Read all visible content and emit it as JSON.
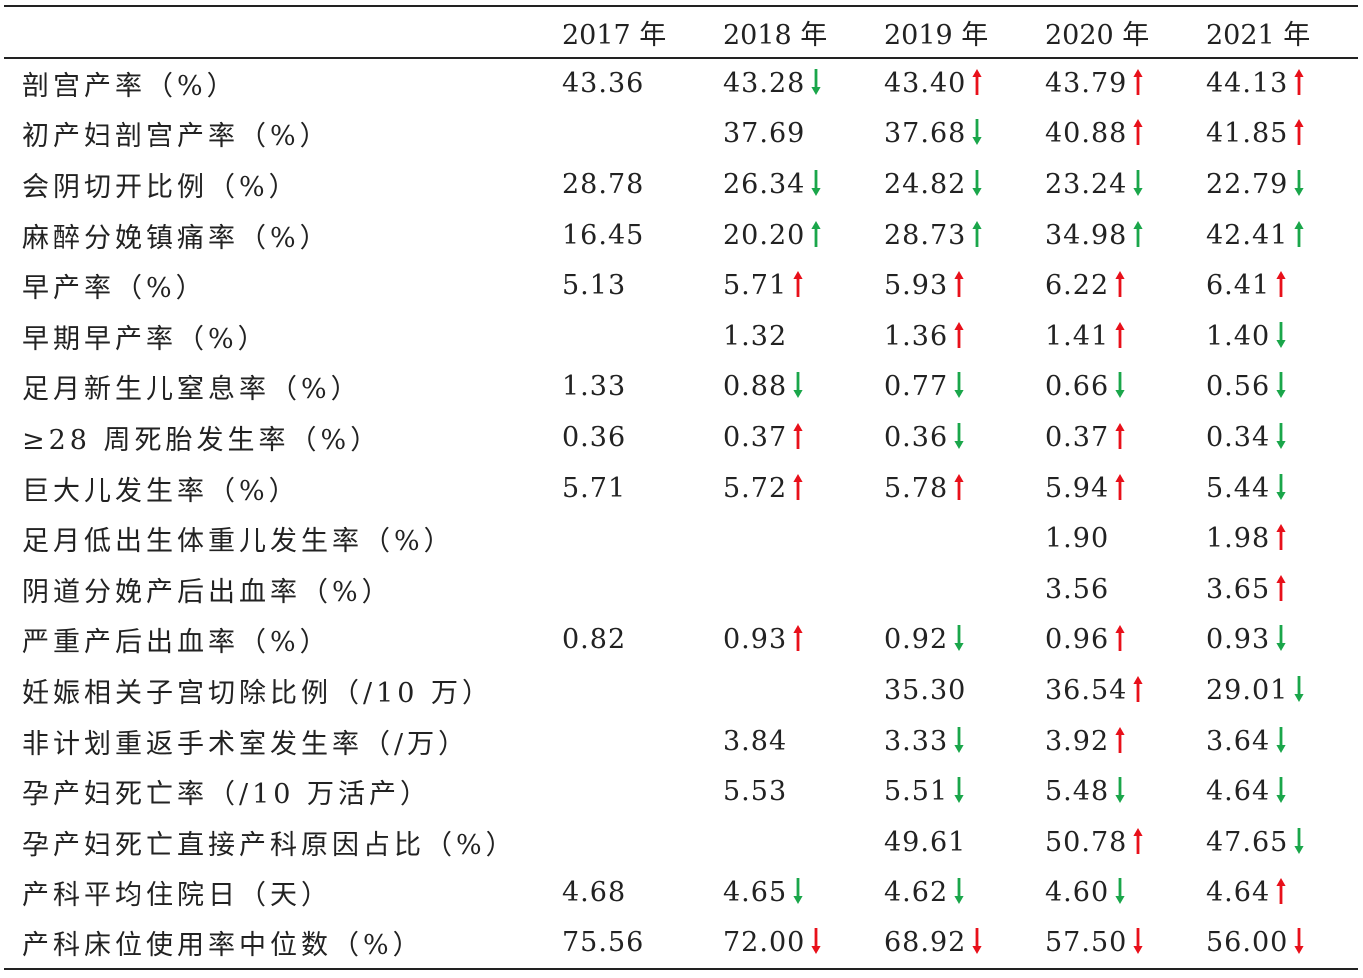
{
  "colors": {
    "up": "#e8101a",
    "down": "#1aa64a",
    "text": "#222222",
    "rule": "#222222"
  },
  "headers": [
    "",
    "2017 年",
    "2018 年",
    "2019 年",
    "2020 年",
    "2021 年"
  ],
  "rows": [
    {
      "label": "剖宫产率（%）",
      "cells": [
        {
          "v": "43.36",
          "t": ""
        },
        {
          "v": "43.28",
          "t": "down"
        },
        {
          "v": "43.40",
          "t": "up"
        },
        {
          "v": "43.79",
          "t": "up"
        },
        {
          "v": "44.13",
          "t": "up"
        }
      ]
    },
    {
      "label": "初产妇剖宫产率（%）",
      "cells": [
        {
          "v": "",
          "t": ""
        },
        {
          "v": "37.69",
          "t": ""
        },
        {
          "v": "37.68",
          "t": "down"
        },
        {
          "v": "40.88",
          "t": "up"
        },
        {
          "v": "41.85",
          "t": "up"
        }
      ]
    },
    {
      "label": "会阴切开比例（%）",
      "cells": [
        {
          "v": "28.78",
          "t": ""
        },
        {
          "v": "26.34",
          "t": "down"
        },
        {
          "v": "24.82",
          "t": "down"
        },
        {
          "v": "23.24",
          "t": "down"
        },
        {
          "v": "22.79",
          "t": "down"
        }
      ]
    },
    {
      "label": "麻醉分娩镇痛率（%）",
      "cells": [
        {
          "v": "16.45",
          "t": ""
        },
        {
          "v": "20.20",
          "t": "up_g"
        },
        {
          "v": "28.73",
          "t": "up_g"
        },
        {
          "v": "34.98",
          "t": "up_g"
        },
        {
          "v": "42.41",
          "t": "up_g"
        }
      ]
    },
    {
      "label": "早产率（%）",
      "cells": [
        {
          "v": "5.13",
          "t": ""
        },
        {
          "v": "5.71",
          "t": "up"
        },
        {
          "v": "5.93",
          "t": "up"
        },
        {
          "v": "6.22",
          "t": "up"
        },
        {
          "v": "6.41",
          "t": "up"
        }
      ]
    },
    {
      "label": "早期早产率（%）",
      "cells": [
        {
          "v": "",
          "t": ""
        },
        {
          "v": "1.32",
          "t": ""
        },
        {
          "v": "1.36",
          "t": "up"
        },
        {
          "v": "1.41",
          "t": "up"
        },
        {
          "v": "1.40",
          "t": "down"
        }
      ]
    },
    {
      "label": "足月新生儿窒息率（%）",
      "cells": [
        {
          "v": "1.33",
          "t": ""
        },
        {
          "v": "0.88",
          "t": "down"
        },
        {
          "v": "0.77",
          "t": "down"
        },
        {
          "v": "0.66",
          "t": "down"
        },
        {
          "v": "0.56",
          "t": "down"
        }
      ]
    },
    {
      "label": "≥28 周死胎发生率（%）",
      "cells": [
        {
          "v": "0.36",
          "t": ""
        },
        {
          "v": "0.37",
          "t": "up"
        },
        {
          "v": "0.36",
          "t": "down"
        },
        {
          "v": "0.37",
          "t": "up"
        },
        {
          "v": "0.34",
          "t": "down"
        }
      ]
    },
    {
      "label": "巨大儿发生率（%）",
      "cells": [
        {
          "v": "5.71",
          "t": ""
        },
        {
          "v": "5.72",
          "t": "up"
        },
        {
          "v": "5.78",
          "t": "up"
        },
        {
          "v": "5.94",
          "t": "up"
        },
        {
          "v": "5.44",
          "t": "down"
        }
      ]
    },
    {
      "label": "足月低出生体重儿发生率（%）",
      "cells": [
        {
          "v": "",
          "t": ""
        },
        {
          "v": "",
          "t": ""
        },
        {
          "v": "",
          "t": ""
        },
        {
          "v": "1.90",
          "t": ""
        },
        {
          "v": "1.98",
          "t": "up"
        }
      ]
    },
    {
      "label": "阴道分娩产后出血率（%）",
      "cells": [
        {
          "v": "",
          "t": ""
        },
        {
          "v": "",
          "t": ""
        },
        {
          "v": "",
          "t": ""
        },
        {
          "v": "3.56",
          "t": ""
        },
        {
          "v": "3.65",
          "t": "up"
        }
      ]
    },
    {
      "label": "严重产后出血率（%）",
      "cells": [
        {
          "v": "0.82",
          "t": ""
        },
        {
          "v": "0.93",
          "t": "up"
        },
        {
          "v": "0.92",
          "t": "down"
        },
        {
          "v": "0.96",
          "t": "up"
        },
        {
          "v": "0.93",
          "t": "down"
        }
      ]
    },
    {
      "label": "妊娠相关子宫切除比例（/10 万）",
      "cells": [
        {
          "v": "",
          "t": ""
        },
        {
          "v": "",
          "t": ""
        },
        {
          "v": "35.30",
          "t": ""
        },
        {
          "v": "36.54",
          "t": "up"
        },
        {
          "v": "29.01",
          "t": "down"
        }
      ]
    },
    {
      "label": "非计划重返手术室发生率（/万）",
      "cells": [
        {
          "v": "",
          "t": ""
        },
        {
          "v": "3.84",
          "t": ""
        },
        {
          "v": "3.33",
          "t": "down"
        },
        {
          "v": "3.92",
          "t": "up"
        },
        {
          "v": "3.64",
          "t": "down"
        }
      ]
    },
    {
      "label": "孕产妇死亡率（/10 万活产）",
      "cells": [
        {
          "v": "",
          "t": ""
        },
        {
          "v": "5.53",
          "t": ""
        },
        {
          "v": "5.51",
          "t": "down"
        },
        {
          "v": "5.48",
          "t": "down"
        },
        {
          "v": "4.64",
          "t": "down"
        }
      ]
    },
    {
      "label": "孕产妇死亡直接产科原因占比（%）",
      "cells": [
        {
          "v": "",
          "t": ""
        },
        {
          "v": "",
          "t": ""
        },
        {
          "v": "49.61",
          "t": ""
        },
        {
          "v": "50.78",
          "t": "up"
        },
        {
          "v": "47.65",
          "t": "down"
        }
      ]
    },
    {
      "label": "产科平均住院日（天）",
      "cells": [
        {
          "v": "4.68",
          "t": ""
        },
        {
          "v": "4.65",
          "t": "down"
        },
        {
          "v": "4.62",
          "t": "down"
        },
        {
          "v": "4.60",
          "t": "down"
        },
        {
          "v": "4.64",
          "t": "up"
        }
      ]
    },
    {
      "label": "产科床位使用率中位数（%）",
      "cells": [
        {
          "v": "75.56",
          "t": ""
        },
        {
          "v": "72.00",
          "t": "down_r"
        },
        {
          "v": "68.92",
          "t": "down_r"
        },
        {
          "v": "57.50",
          "t": "down_r"
        },
        {
          "v": "56.00",
          "t": "down_r"
        }
      ]
    }
  ]
}
